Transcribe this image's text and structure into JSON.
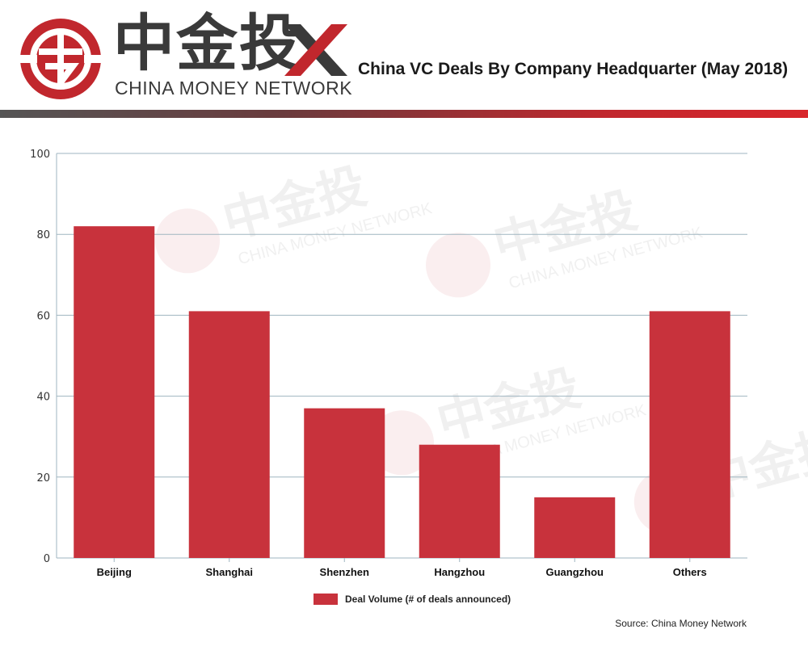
{
  "header": {
    "logo_cn": "中金投",
    "logo_en": "CHINA MONEY NETWORK",
    "title": "China VC Deals By Company Headquarter (May 2018)"
  },
  "colors": {
    "bar": "#c8323c",
    "brand_red": "#c1272d",
    "brand_dark": "#3a3a3a",
    "grid": "#9fb5c0"
  },
  "chart_data": {
    "type": "bar",
    "categories": [
      "Beijing",
      "Shanghai",
      "Shenzhen",
      "Hangzhou",
      "Guangzhou",
      "Others"
    ],
    "series": [
      {
        "name": "Deal Volume (# of deals announced)",
        "values": [
          82,
          61,
          37,
          28,
          15,
          61
        ]
      }
    ],
    "ylim": [
      0,
      100
    ],
    "yticks": [
      0,
      20,
      40,
      60,
      80,
      100
    ],
    "grid": true,
    "legend_position": "bottom-center"
  },
  "legend": {
    "label": "Deal Volume (# of deals announced)"
  },
  "source": "Source: China Money Network"
}
